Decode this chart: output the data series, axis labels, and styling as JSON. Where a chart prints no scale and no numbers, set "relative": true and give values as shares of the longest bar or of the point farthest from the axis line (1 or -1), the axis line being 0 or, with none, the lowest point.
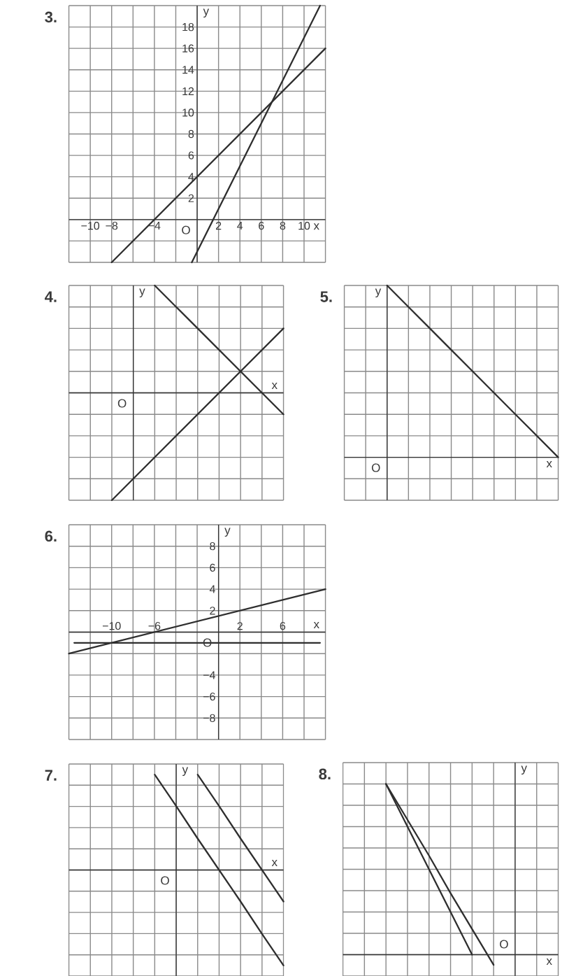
{
  "chart_data": [
    {
      "type": "line",
      "title": "3.",
      "xlabel": "x",
      "ylabel": "y",
      "grid": true,
      "marker": "none",
      "line_style": "solid",
      "series": [
        {
          "color": "#2e2e2e",
          "x": [
            -8,
            12
          ],
          "values": [
            -4,
            16
          ]
        },
        {
          "color": "#2e2e2e",
          "x": [
            -0.5,
            11.5
          ],
          "values": [
            -4,
            20
          ]
        }
      ],
      "xlim": [
        -12,
        12
      ],
      "ylim": [
        -4,
        20
      ],
      "xticks": [
        {
          "value": -12,
          "label": null
        },
        {
          "value": -10,
          "label": "−10"
        },
        {
          "value": -8,
          "label": "−8"
        },
        {
          "value": -6,
          "label": null
        },
        {
          "value": -4,
          "label": "−4"
        },
        {
          "value": -2,
          "label": null
        },
        {
          "value": 0,
          "label": null
        },
        2,
        4,
        6,
        8,
        10,
        {
          "value": 12,
          "label": null
        }
      ],
      "yticks": [
        {
          "value": -4,
          "label": null
        },
        {
          "value": -2,
          "label": null
        },
        {
          "value": 0,
          "label": null
        },
        2,
        4,
        6,
        8,
        10,
        12,
        14,
        16,
        18,
        {
          "value": 20,
          "label": null
        }
      ],
      "annotations": [
        "O"
      ]
    },
    {
      "type": "line",
      "title": "4.",
      "xlabel": "x",
      "ylabel": "y",
      "grid": true,
      "marker": "none",
      "line_style": "solid",
      "relative": true,
      "categories": [
        null,
        null,
        null,
        null,
        null,
        null,
        null,
        null,
        null,
        null,
        null
      ],
      "series": [
        {
          "color": "#2e2e2e",
          "values": [
            null,
            null,
            null,
            null,
            1,
            0.8,
            0.6,
            0.4,
            0.2,
            0,
            -0.2
          ]
        },
        {
          "color": "#2e2e2e",
          "values": [
            null,
            null,
            -1,
            -0.8,
            -0.6,
            -0.4,
            -0.2,
            0,
            0.2,
            0.4,
            0.6
          ]
        }
      ],
      "annotations": [
        "O"
      ]
    },
    {
      "type": "line",
      "title": "5.",
      "xlabel": "x",
      "ylabel": "y",
      "grid": true,
      "marker": "none",
      "line_style": "solid",
      "relative": true,
      "categories": [
        null,
        null,
        null,
        null,
        null,
        null,
        null,
        null,
        null,
        null,
        null
      ],
      "series": [
        {
          "color": "#2e2e2e",
          "values": [
            null,
            null,
            1,
            0.875,
            0.75,
            0.625,
            0.5,
            0.375,
            0.25,
            0.125,
            0
          ]
        }
      ],
      "annotations": [
        "O"
      ]
    },
    {
      "type": "line",
      "title": "6.",
      "xlabel": "x",
      "ylabel": "y",
      "grid": true,
      "marker": "none",
      "line_style": "solid",
      "series": [
        {
          "color": "#2e2e2e",
          "x": [
            -14,
            10
          ],
          "values": [
            -2,
            4
          ]
        },
        {
          "color": "#2e2e2e",
          "x": [
            -13.5,
            9.5
          ],
          "values": [
            -1,
            -1
          ]
        }
      ],
      "xlim": [
        -14,
        10
      ],
      "ylim": [
        -10,
        10
      ],
      "xticks": [
        {
          "value": -14,
          "label": null
        },
        {
          "value": -12,
          "label": null
        },
        {
          "value": -10,
          "label": "−10"
        },
        {
          "value": -8,
          "label": null
        },
        {
          "value": -6,
          "label": "−6"
        },
        {
          "value": -4,
          "label": null
        },
        {
          "value": -2,
          "label": null
        },
        {
          "value": 0,
          "label": null
        },
        2,
        {
          "value": 4,
          "label": null
        },
        6,
        {
          "value": 8,
          "label": null
        },
        {
          "value": 10,
          "label": null
        }
      ],
      "yticks": [
        {
          "value": -10,
          "label": null
        },
        {
          "value": -8,
          "label": "−8"
        },
        {
          "value": -6,
          "label": "−6"
        },
        {
          "value": -4,
          "label": "−4"
        },
        {
          "value": -2,
          "label": null
        },
        {
          "value": 0,
          "label": null
        },
        2,
        4,
        6,
        8,
        {
          "value": 10,
          "label": null
        }
      ],
      "annotations": [
        "O"
      ]
    },
    {
      "type": "line",
      "title": "7.",
      "xlabel": "x",
      "ylabel": "y",
      "grid": true,
      "marker": "none",
      "line_style": "solid",
      "relative": true,
      "categories": [
        null,
        null,
        null,
        null,
        null,
        null,
        null,
        null,
        null,
        null,
        null
      ],
      "series": [
        {
          "color": "#2e2e2e",
          "values": [
            null,
            null,
            null,
            null,
            1,
            0.67,
            0.33,
            0,
            -0.33,
            -0.67,
            -1
          ]
        },
        {
          "color": "#2e2e2e",
          "values": [
            null,
            null,
            null,
            null,
            null,
            null,
            1,
            0.67,
            0.33,
            0,
            -0.33
          ]
        }
      ],
      "annotations": [
        "O"
      ]
    },
    {
      "type": "line",
      "title": "8.",
      "xlabel": "x",
      "ylabel": "y",
      "grid": true,
      "marker": "none",
      "line_style": "solid",
      "relative": true,
      "categories": [
        null,
        null,
        null,
        null,
        null,
        null,
        null,
        null,
        null,
        null,
        null
      ],
      "series": [
        {
          "color": "#2e2e2e",
          "values": [
            null,
            null,
            1,
            0.75,
            0.5,
            0.25,
            0,
            null,
            null,
            null,
            null
          ]
        },
        {
          "color": "#2e2e2e",
          "values": [
            null,
            null,
            1,
            0.79,
            0.58,
            0.36,
            0.15,
            -0.06,
            null,
            null,
            null
          ]
        }
      ],
      "annotations": [
        "O"
      ]
    }
  ]
}
